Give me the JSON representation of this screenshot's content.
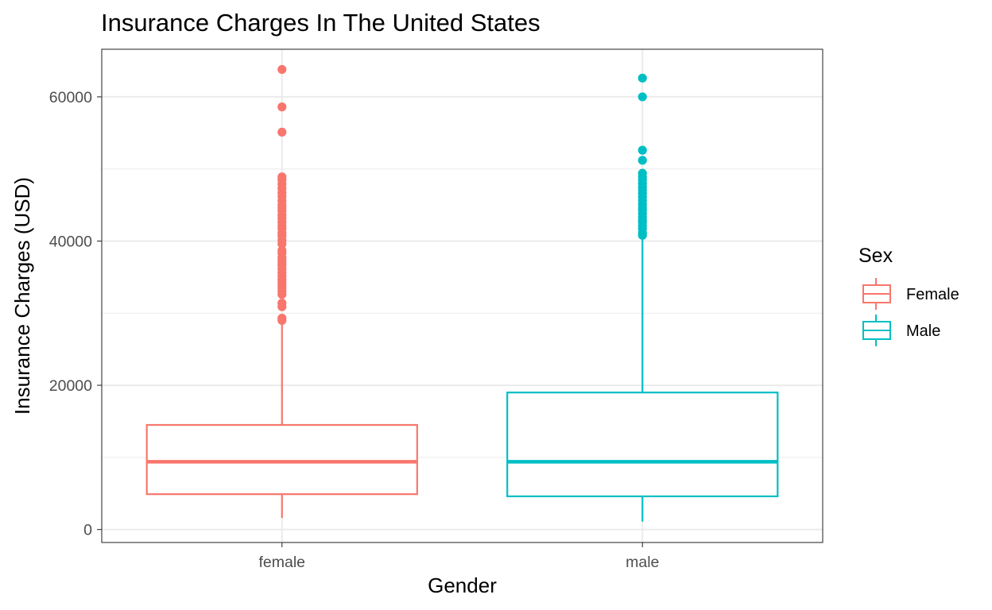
{
  "chart_data": {
    "type": "box",
    "title": "Insurance Charges In The United States",
    "xlabel": "Gender",
    "ylabel": "Insurance Charges (USD)",
    "ylim": [
      -1800,
      66600
    ],
    "y_ticks": [
      0,
      20000,
      40000,
      60000
    ],
    "y_tick_labels": [
      "0",
      "20000",
      "40000",
      "60000"
    ],
    "grid": true,
    "legend": {
      "title": "Sex",
      "placement": "right",
      "entries": [
        {
          "label": "Female",
          "color": "#F8766D"
        },
        {
          "label": "Male",
          "color": "#00BFC4"
        }
      ]
    },
    "categories": [
      "female",
      "male"
    ],
    "boxes": [
      {
        "category": "female",
        "legend_label": "Female",
        "color": "#F8766D",
        "whisker_low": 1600,
        "q1": 4900,
        "median": 9400,
        "q3": 14500,
        "whisker_high": 28900,
        "outliers": [
          29000,
          29300,
          30900,
          31400,
          32600,
          33100,
          33500,
          33900,
          34300,
          34700,
          35200,
          35600,
          36100,
          36600,
          36900,
          37300,
          37700,
          38300,
          38700,
          39600,
          40100,
          40700,
          41100,
          41700,
          42100,
          42600,
          43100,
          43600,
          44200,
          44600,
          45000,
          45600,
          46200,
          46700,
          47300,
          47900,
          48500,
          48900,
          55100,
          58600,
          63800
        ]
      },
      {
        "category": "male",
        "legend_label": "Male",
        "color": "#00BFC4",
        "whisker_low": 1100,
        "q1": 4600,
        "median": 9400,
        "q3": 19000,
        "whisker_high": 40500,
        "outliers": [
          40800,
          41100,
          41700,
          42100,
          42600,
          42900,
          43300,
          43800,
          44300,
          44600,
          45100,
          45600,
          46100,
          46600,
          47100,
          47500,
          48000,
          48500,
          48900,
          49400,
          51200,
          52600,
          60000,
          62600
        ]
      }
    ]
  }
}
